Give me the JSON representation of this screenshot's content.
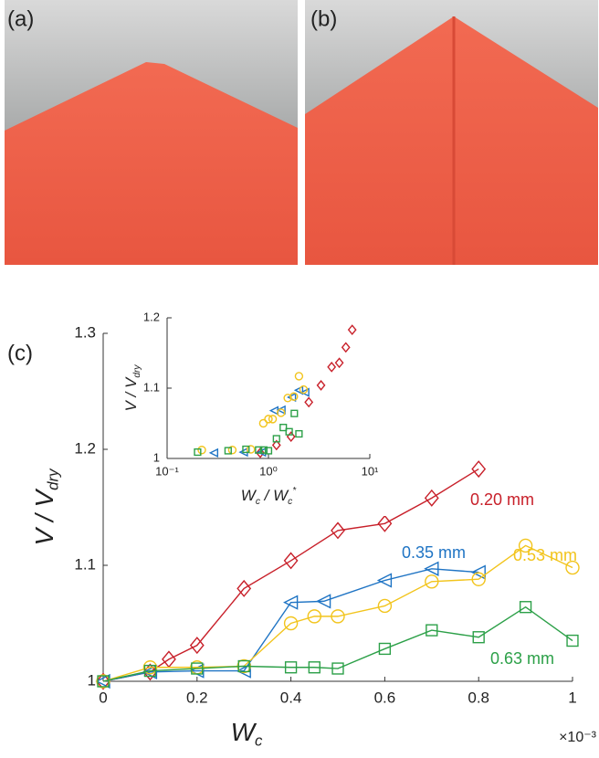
{
  "panel_labels": [
    "(a)",
    "(b)",
    "(c)"
  ],
  "chart_data": [
    {
      "type": "line",
      "y_label": {
        "main": "V / V",
        "sub": "dry"
      },
      "x_label": {
        "main": "W",
        "sub": "c"
      },
      "x_scale_note": "×10⁻³",
      "xlim": [
        0,
        1
      ],
      "ylim": [
        1,
        1.3
      ],
      "xticks": [
        0,
        0.2,
        0.4,
        0.6,
        0.8,
        1
      ],
      "yticks": [
        1,
        1.1,
        1.2,
        1.3
      ],
      "series": [
        {
          "name": "0.20 mm",
          "color": "#c8202a",
          "marker": "diamond",
          "x": [
            0,
            0.1,
            0.14,
            0.2,
            0.3,
            0.4,
            0.5,
            0.6,
            0.7,
            0.8
          ],
          "values": [
            1,
            1.008,
            1.019,
            1.031,
            1.08,
            1.104,
            1.13,
            1.136,
            1.158,
            1.183
          ]
        },
        {
          "name": "0.35 mm",
          "color": "#1f74c4",
          "marker": "triangle-left",
          "x": [
            0,
            0.1,
            0.2,
            0.3,
            0.4,
            0.47,
            0.6,
            0.7,
            0.8
          ],
          "values": [
            1,
            1.008,
            1.009,
            1.009,
            1.068,
            1.069,
            1.087,
            1.097,
            1.094
          ]
        },
        {
          "name": "0.53 mm",
          "color": "#f2c41c",
          "marker": "circle",
          "x": [
            0,
            0.1,
            0.2,
            0.3,
            0.4,
            0.45,
            0.5,
            0.6,
            0.7,
            0.8,
            0.9,
            1
          ],
          "values": [
            1,
            1.012,
            1.012,
            1.013,
            1.05,
            1.056,
            1.056,
            1.065,
            1.086,
            1.088,
            1.117,
            1.098
          ]
        },
        {
          "name": "0.63 mm",
          "color": "#2ca048",
          "marker": "square",
          "x": [
            0,
            0.1,
            0.2,
            0.3,
            0.4,
            0.45,
            0.5,
            0.6,
            0.7,
            0.8,
            0.9,
            1
          ],
          "values": [
            1,
            1.009,
            1.011,
            1.013,
            1.012,
            1.012,
            1.011,
            1.028,
            1.044,
            1.038,
            1.064,
            1.035
          ]
        }
      ]
    },
    {
      "type": "scatter",
      "y_label": {
        "main": "V / V",
        "sub": "dry"
      },
      "x_label": {
        "main": "W",
        "sub": "c",
        "mid": " / W",
        "sub2": "c",
        "sup": "*"
      },
      "log_x": true,
      "xlim": [
        0.1,
        10
      ],
      "ylim": [
        1,
        1.2
      ],
      "xticks": [
        {
          "value": 0.1,
          "label": "10⁻¹"
        },
        {
          "value": 1,
          "label": "10⁰"
        },
        {
          "value": 10,
          "label": "10¹"
        }
      ],
      "yticks": [
        1,
        1.1,
        1.2
      ],
      "series": [
        {
          "color": "#c8202a",
          "marker": "diamond",
          "x": [
            0.83,
            1.2,
            1.67,
            2.5,
            3.3,
            4.2,
            5,
            5.8,
            6.7
          ],
          "values": [
            1.008,
            1.019,
            1.031,
            1.08,
            1.104,
            1.13,
            1.136,
            1.158,
            1.183
          ]
        },
        {
          "color": "#1f74c4",
          "marker": "triangle-left",
          "x": [
            0.29,
            0.57,
            0.86,
            1.14,
            1.34,
            1.7,
            2.0,
            2.3
          ],
          "values": [
            1.008,
            1.009,
            1.009,
            1.068,
            1.069,
            1.087,
            1.097,
            1.094
          ]
        },
        {
          "color": "#f2c41c",
          "marker": "circle",
          "x": [
            0.22,
            0.44,
            0.67,
            0.89,
            1.0,
            1.1,
            1.33,
            1.55,
            1.78,
            2.0,
            2.22
          ],
          "values": [
            1.012,
            1.012,
            1.013,
            1.05,
            1.056,
            1.056,
            1.065,
            1.086,
            1.088,
            1.117,
            1.098
          ]
        },
        {
          "color": "#2ca048",
          "marker": "square",
          "x": [
            0.2,
            0.4,
            0.6,
            0.8,
            0.9,
            1.0,
            1.2,
            1.4,
            1.6,
            1.8,
            2.0
          ],
          "values": [
            1.009,
            1.011,
            1.013,
            1.012,
            1.012,
            1.011,
            1.028,
            1.044,
            1.038,
            1.064,
            1.035
          ]
        }
      ]
    }
  ]
}
